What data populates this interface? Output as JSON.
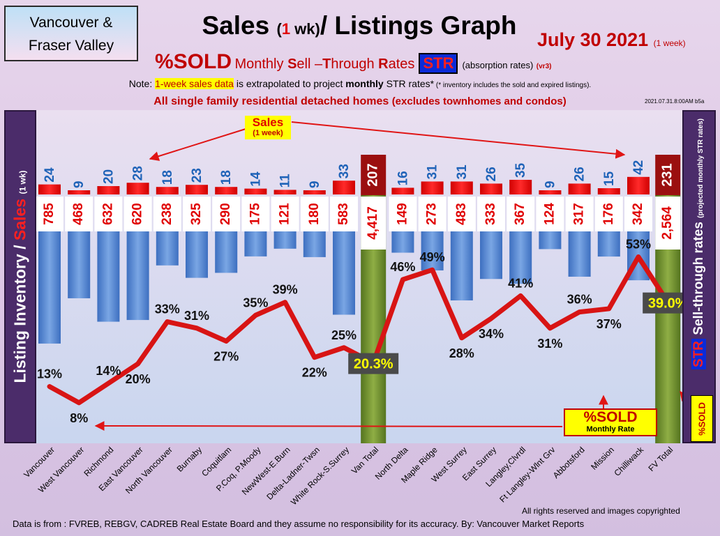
{
  "region": {
    "line1": "Vancouver &",
    "line2": "Fraser Valley"
  },
  "title": {
    "part1": "Sales ",
    "paren_open": "(",
    "one": "1",
    "wk": " wk)",
    "part2": "/ Listings Graph"
  },
  "date": {
    "text": "July 30  2021",
    "period": "(1 week)"
  },
  "subtitle": {
    "sold": "%SOLD",
    "monthly": "Monthly ",
    "S": "S",
    "ell": "ell –",
    "T": "T",
    "hrough": "hrough ",
    "R": "R",
    "ates": "ates",
    "str": "STR",
    "absorption": "(absorption rates)",
    "ver": "(vr3)"
  },
  "note": {
    "prefix": "Note: ",
    "highlight": "1-week sales data",
    "mid": " is extrapolated to project ",
    "bold": "monthly",
    "rest": " STR rates*",
    "fine": " (* inventory includes the sold and expired listings)."
  },
  "scope": {
    "main": "All single family residential detached homes ",
    "paren": "(excludes townhomes and condos)"
  },
  "stamp": "2021.07.31.8:00AM b5a",
  "left_axis": {
    "part1": "Listing Inventory ",
    "slash": "/",
    "sales": " Sales ",
    "wk": "(1 wk)"
  },
  "right_axis": {
    "part1": "Sell-through rates ",
    "paren": "(projected monthly STR rates)",
    "str": "STR"
  },
  "side_label": "%SOLD",
  "sold_box": {
    "line1": "%SOLD",
    "line2": "Monthly Rate"
  },
  "sales_callout": {
    "line1": "Sales",
    "line2": "(1 week)"
  },
  "copyright": "All rights reserved and  images copyrighted",
  "footer": "Data is from : FVREB, REBGV, CADREB Real Estate Board and they assume no responsibility for its accuracy. By: Vancouver Market Reports",
  "colors": {
    "sales": "#ee0000",
    "listings": "#4f86d4",
    "total": "#6a8a2e",
    "line": "#e01515"
  },
  "chart_data": {
    "type": "bar",
    "categories": [
      "Vancouver",
      "West Vancouver",
      "Richmond",
      "East Vancouver",
      "North Vancouver",
      "Burnaby",
      "Coquitlam",
      "P.Coq, P.Moody",
      "NewWest-E.Burn",
      "Delta-Ladner-Twsn",
      "White Rock-S.Surrey",
      "Van Total",
      "North Delta",
      "Maple Ridge",
      "West Surrey",
      "East Surrey",
      "Langley,Clvrdl",
      "Ft Langley-Wlnt Grv",
      "Abbotsford",
      "Mission",
      "Chilliwack",
      "FV Total"
    ],
    "series": [
      {
        "name": "Sales",
        "values": [
          24,
          9,
          20,
          28,
          18,
          23,
          18,
          14,
          11,
          9,
          33,
          207,
          16,
          31,
          31,
          26,
          35,
          9,
          26,
          15,
          42,
          231
        ]
      },
      {
        "name": "Listing Inventory",
        "values": [
          785,
          468,
          632,
          620,
          238,
          325,
          290,
          175,
          121,
          180,
          583,
          4417,
          149,
          273,
          483,
          333,
          367,
          124,
          317,
          176,
          342,
          2564
        ]
      },
      {
        "name": "%SOLD",
        "values": [
          13,
          8,
          14,
          20,
          33,
          31,
          27,
          35,
          39,
          22,
          25,
          20.3,
          46,
          49,
          28,
          34,
          41,
          31,
          36,
          37,
          53,
          39.0
        ]
      }
    ],
    "sales_labels": [
      "24",
      "9",
      "20",
      "28",
      "18",
      "23",
      "18",
      "14",
      "11",
      "9",
      "33",
      "207",
      "16",
      "31",
      "31",
      "26",
      "35",
      "9",
      "26",
      "15",
      "42",
      "231"
    ],
    "listing_labels": [
      "785",
      "468",
      "632",
      "620",
      "238",
      "325",
      "290",
      "175",
      "121",
      "180",
      "583",
      "4,417",
      "149",
      "273",
      "483",
      "333",
      "367",
      "124",
      "317",
      "176",
      "342",
      "2,564"
    ],
    "pct_labels": [
      "13%",
      "8%",
      "14%",
      "20%",
      "33%",
      "31%",
      "27%",
      "35%",
      "39%",
      "22%",
      "25%",
      "20.3%",
      "46%",
      "49%",
      "28%",
      "34%",
      "41%",
      "31%",
      "36%",
      "37%",
      "53%",
      "39.0%"
    ],
    "pct_label_pos": [
      "above",
      "below",
      "above",
      "below",
      "above",
      "above",
      "below",
      "above",
      "above",
      "below",
      "above",
      "box",
      "above",
      "above",
      "below",
      "below",
      "above",
      "below",
      "above",
      "below",
      "above",
      "box"
    ],
    "total_indices": [
      11,
      21
    ],
    "xlabel": "",
    "ylabel": ""
  }
}
